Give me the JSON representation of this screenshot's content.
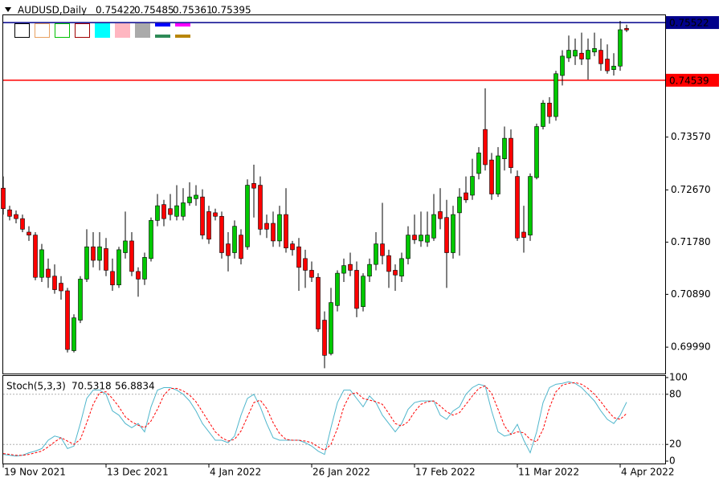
{
  "chart_data": [
    {
      "type": "candlestick",
      "title": "AUDUSD,Daily",
      "categories": [
        "19 Nov 2021",
        null,
        null,
        null,
        null,
        null,
        null,
        null,
        null,
        null,
        null,
        null,
        null,
        null,
        null,
        null,
        "13 Dec 2021",
        null,
        null,
        null,
        null,
        null,
        null,
        null,
        null,
        null,
        null,
        null,
        null,
        null,
        null,
        null,
        "4 Jan 2022",
        null,
        null,
        null,
        null,
        null,
        null,
        null,
        null,
        null,
        null,
        null,
        null,
        null,
        null,
        null,
        "26 Jan 2022",
        null,
        null,
        null,
        null,
        null,
        null,
        null,
        null,
        null,
        null,
        null,
        null,
        null,
        null,
        null,
        "17 Feb 2022",
        null,
        null,
        null,
        null,
        null,
        null,
        null,
        null,
        null,
        null,
        null,
        null,
        null,
        null,
        null,
        "11 Mar 2022",
        null,
        null,
        null,
        null,
        null,
        null,
        null,
        null,
        null,
        null,
        null,
        null,
        null,
        null,
        null,
        "4 Apr 2022",
        null
      ],
      "open": [
        0.727,
        0.7233,
        0.7225,
        0.7218,
        0.7195,
        0.719,
        0.7118,
        0.7132,
        0.712,
        0.7108,
        0.7095,
        0.6993,
        0.7045,
        0.7115,
        0.717,
        0.7147,
        0.7167,
        0.7128,
        0.7105,
        0.716,
        0.718,
        0.7128,
        0.7115,
        0.715,
        0.7215,
        0.7242,
        0.7235,
        0.7222,
        0.7222,
        0.7245,
        0.7252,
        0.7255,
        0.723,
        0.7228,
        0.7222,
        0.7175,
        0.716,
        0.719,
        0.717,
        0.7278,
        0.7275,
        0.721,
        0.721,
        0.718,
        0.7225,
        0.7175,
        0.717,
        0.715,
        0.713,
        0.7118,
        0.7045,
        0.6988,
        0.707,
        0.7125,
        0.714,
        0.713,
        0.7068,
        0.712,
        0.714,
        0.7175,
        0.7155,
        0.713,
        0.712,
        0.715,
        0.719,
        0.718,
        0.7178,
        0.7185,
        0.723,
        0.722,
        0.716,
        0.7228,
        0.7262,
        0.7258,
        0.7295,
        0.737,
        0.7318,
        0.726,
        0.732,
        0.7355,
        0.729,
        0.7195,
        0.719,
        0.7288,
        0.7375,
        0.7415,
        0.7392,
        0.7462,
        0.7492,
        0.7495,
        0.75,
        0.749,
        0.7502,
        0.7505,
        0.749,
        0.7472,
        0.7478,
        0.75422
      ],
      "high": [
        0.729,
        0.724,
        0.7232,
        0.7225,
        0.7205,
        0.7195,
        0.7175,
        0.715,
        0.714,
        0.712,
        0.71,
        0.7055,
        0.712,
        0.72,
        0.7195,
        0.7195,
        0.7185,
        0.715,
        0.717,
        0.723,
        0.7195,
        0.7135,
        0.716,
        0.722,
        0.726,
        0.725,
        0.726,
        0.7275,
        0.727,
        0.728,
        0.7275,
        0.7268,
        0.724,
        0.7235,
        0.723,
        0.7195,
        0.7215,
        0.72,
        0.7285,
        0.731,
        0.729,
        0.7225,
        0.723,
        0.724,
        0.727,
        0.718,
        0.7185,
        0.7165,
        0.7145,
        0.7125,
        0.706,
        0.71,
        0.713,
        0.715,
        0.716,
        0.7145,
        0.7125,
        0.715,
        0.7195,
        0.7245,
        0.7165,
        0.714,
        0.716,
        0.7205,
        0.7225,
        0.723,
        0.723,
        0.726,
        0.727,
        0.725,
        0.724,
        0.727,
        0.729,
        0.732,
        0.734,
        0.744,
        0.733,
        0.734,
        0.7375,
        0.737,
        0.73,
        0.724,
        0.7295,
        0.738,
        0.742,
        0.7425,
        0.747,
        0.7505,
        0.753,
        0.7525,
        0.7535,
        0.7525,
        0.7535,
        0.7525,
        0.7515,
        0.75,
        0.7555,
        0.75485
      ],
      "low": [
        0.7225,
        0.7215,
        0.721,
        0.7195,
        0.718,
        0.7113,
        0.711,
        0.71,
        0.709,
        0.708,
        0.699,
        0.699,
        0.704,
        0.711,
        0.7135,
        0.713,
        0.712,
        0.7095,
        0.71,
        0.715,
        0.712,
        0.7085,
        0.7105,
        0.7145,
        0.7205,
        0.7205,
        0.7215,
        0.7215,
        0.7215,
        0.724,
        0.724,
        0.7183,
        0.7175,
        0.7215,
        0.715,
        0.7128,
        0.715,
        0.714,
        0.7165,
        0.722,
        0.719,
        0.7185,
        0.717,
        0.717,
        0.716,
        0.7155,
        0.7095,
        0.71,
        0.711,
        0.7025,
        0.6963,
        0.6985,
        0.706,
        0.711,
        0.712,
        0.705,
        0.706,
        0.711,
        0.713,
        0.714,
        0.71,
        0.7095,
        0.711,
        0.714,
        0.7175,
        0.717,
        0.717,
        0.718,
        0.72,
        0.71,
        0.715,
        0.7155,
        0.7245,
        0.725,
        0.7285,
        0.73,
        0.725,
        0.7255,
        0.73,
        0.7295,
        0.718,
        0.716,
        0.718,
        0.7285,
        0.737,
        0.738,
        0.7385,
        0.7445,
        0.7485,
        0.748,
        0.748,
        0.7455,
        0.7495,
        0.747,
        0.7465,
        0.7462,
        0.747,
        0.75361
      ],
      "close": [
        0.7235,
        0.7222,
        0.7218,
        0.72,
        0.719,
        0.7118,
        0.7165,
        0.7118,
        0.7097,
        0.7095,
        0.6995,
        0.7049,
        0.7115,
        0.717,
        0.7147,
        0.717,
        0.713,
        0.7105,
        0.7165,
        0.718,
        0.7128,
        0.7115,
        0.7152,
        0.7215,
        0.724,
        0.7218,
        0.7225,
        0.724,
        0.7245,
        0.7255,
        0.7258,
        0.719,
        0.7183,
        0.7222,
        0.716,
        0.7155,
        0.7205,
        0.715,
        0.7275,
        0.727,
        0.72,
        0.72,
        0.718,
        0.7225,
        0.7168,
        0.7165,
        0.7135,
        0.713,
        0.7118,
        0.703,
        0.6985,
        0.7075,
        0.7125,
        0.7138,
        0.713,
        0.7065,
        0.712,
        0.714,
        0.7175,
        0.7155,
        0.7128,
        0.7122,
        0.715,
        0.719,
        0.7182,
        0.719,
        0.719,
        0.7225,
        0.7218,
        0.716,
        0.7225,
        0.7255,
        0.725,
        0.729,
        0.733,
        0.731,
        0.726,
        0.7325,
        0.7355,
        0.7305,
        0.7185,
        0.7186,
        0.729,
        0.7375,
        0.7415,
        0.7392,
        0.7465,
        0.7495,
        0.7505,
        0.7505,
        0.749,
        0.7505,
        0.7508,
        0.7482,
        0.747,
        0.7478,
        0.754,
        0.75395
      ],
      "up_color": "#00c800",
      "down_color": "#ff0000",
      "ylim": [
        0.6954,
        0.7566
      ],
      "yticks": [
        {
          "value": 0.6999,
          "label": "0.69990"
        },
        {
          "value": 0.7089,
          "label": "0.70890"
        },
        {
          "value": 0.7178,
          "label": "0.71780"
        },
        {
          "value": 0.7267,
          "label": "0.72670"
        },
        {
          "value": 0.7357,
          "label": "0.73570"
        }
      ],
      "levels": [
        {
          "value": 0.75522,
          "color": "#00008b"
        },
        {
          "value": 0.74539,
          "color": "#ff0000"
        }
      ]
    },
    {
      "type": "line",
      "title": "Stoch(5,3,3)",
      "series": [
        {
          "name": "Main",
          "color": "#4fb6cc",
          "style": "solid",
          "values": [
            8,
            7,
            6,
            7,
            10,
            12,
            15,
            25,
            30,
            28,
            15,
            18,
            45,
            75,
            85,
            85,
            80,
            60,
            55,
            45,
            40,
            45,
            35,
            65,
            85,
            88,
            88,
            85,
            80,
            72,
            60,
            45,
            35,
            25,
            25,
            22,
            30,
            55,
            75,
            80,
            65,
            45,
            28,
            25,
            25,
            25,
            25,
            22,
            18,
            12,
            8,
            40,
            70,
            85,
            85,
            75,
            65,
            78,
            70,
            55,
            45,
            35,
            45,
            62,
            70,
            72,
            72,
            72,
            55,
            50,
            60,
            65,
            80,
            88,
            92,
            90,
            60,
            35,
            30,
            32,
            44,
            25,
            10,
            35,
            70,
            88,
            92,
            93,
            95,
            93,
            88,
            80,
            72,
            60,
            50,
            45,
            55,
            70.5318
          ]
        },
        {
          "name": "Signal",
          "color": "#ff0000",
          "style": "dashed",
          "values": [
            9,
            8,
            7,
            7,
            8,
            10,
            12,
            17,
            23,
            28,
            24,
            20,
            26,
            46,
            68,
            82,
            83,
            75,
            65,
            53,
            47,
            43,
            40,
            48,
            62,
            79,
            87,
            87,
            84,
            79,
            71,
            59,
            47,
            35,
            28,
            24,
            26,
            36,
            53,
            70,
            73,
            63,
            46,
            33,
            26,
            25,
            25,
            24,
            22,
            17,
            13,
            20,
            39,
            65,
            80,
            82,
            75,
            73,
            71,
            68,
            57,
            45,
            42,
            47,
            59,
            68,
            71,
            72,
            66,
            59,
            55,
            58,
            68,
            78,
            87,
            90,
            81,
            62,
            42,
            32,
            35,
            34,
            26,
            23,
            38,
            64,
            83,
            91,
            93,
            94,
            92,
            87,
            80,
            71,
            61,
            52,
            50,
            56.8834
          ]
        }
      ],
      "ylim": [
        0,
        100
      ],
      "yticks": [
        0,
        20,
        80,
        100
      ]
    }
  ]
}
